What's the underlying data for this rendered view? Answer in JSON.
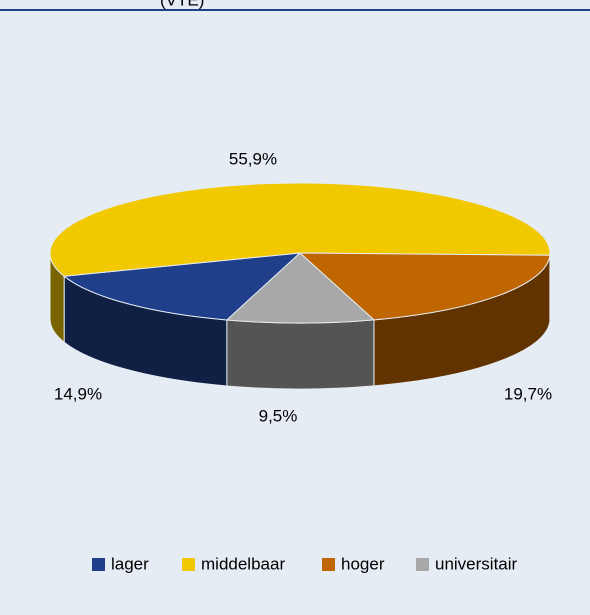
{
  "chart_data": {
    "type": "pie3d",
    "title": "(VTE)",
    "categories": [
      "lager",
      "middelbaar",
      "hoger",
      "universitair"
    ],
    "values": [
      14.9,
      55.9,
      19.7,
      9.5
    ],
    "value_labels": [
      "14,9%",
      "55,9%",
      "19,7%",
      "9,5%"
    ],
    "colors": [
      "#1f3f8a",
      "#f2c800",
      "#c06600",
      "#a8a8a8"
    ],
    "legend": "bottom"
  }
}
